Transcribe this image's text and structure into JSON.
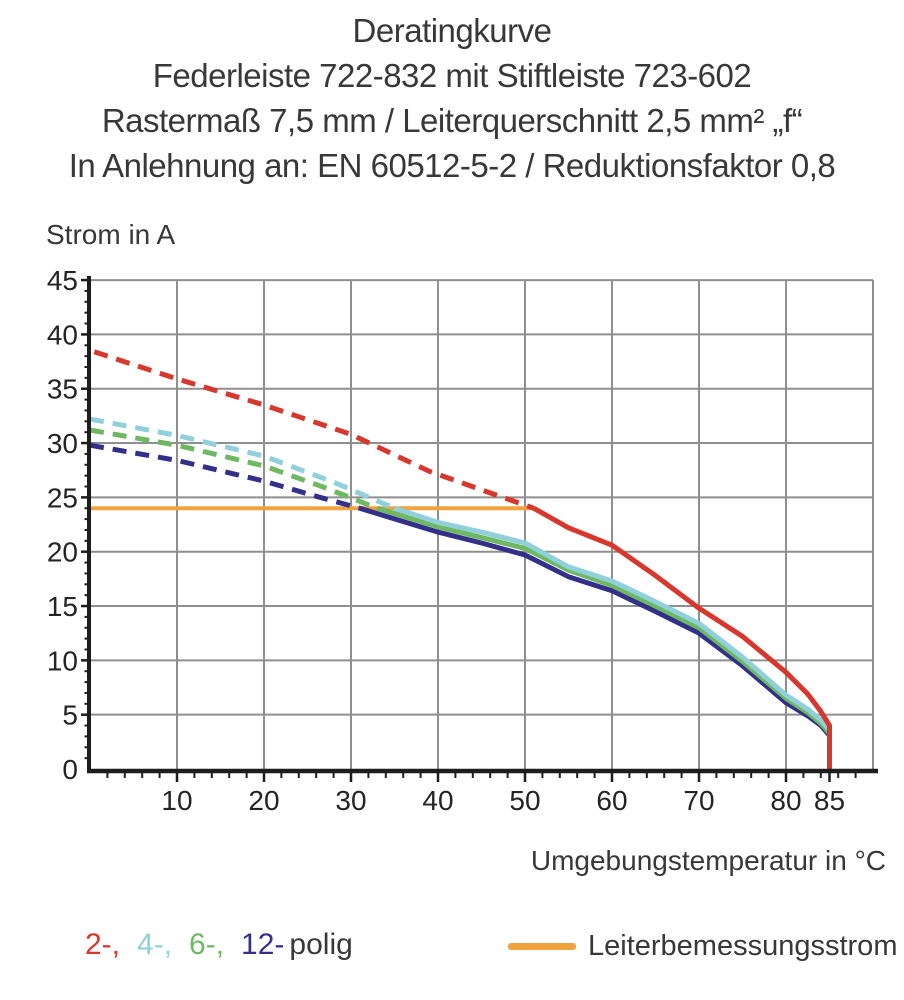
{
  "title": {
    "line1": "Deratingkurve",
    "line2": "Federleiste 722-832 mit Stiftleiste 723-602",
    "line3": "Rastermaß 7,5 mm / Leiterquerschnitt 2,5 mm² „f“",
    "line4": "In Anlehnung an: EN 60512-5-2 / Reduktionsfaktor 0,8"
  },
  "legend": {
    "pole_items": [
      {
        "text": "2-,",
        "color_key": "red"
      },
      {
        "text": "4-,",
        "color_key": "cyan"
      },
      {
        "text": "6-,",
        "color_key": "green"
      },
      {
        "text": "12-",
        "color_key": "blue"
      },
      {
        "text": "polig",
        "color_key": "text"
      }
    ],
    "rated_current_label": "Leiterbemessungsstrom"
  },
  "colors": {
    "red": "#d7372c",
    "cyan": "#8fd0da",
    "green": "#6db860",
    "blue": "#33308a",
    "orange": "#f0a23e",
    "grid": "#8f8f8f",
    "axis": "#1d1d1d",
    "text": "#383838"
  },
  "chart_data": {
    "type": "line",
    "title": "Deratingkurve",
    "xlabel": "Umgebungstemperatur in °C",
    "ylabel": "Strom in A",
    "xlim": [
      0,
      90
    ],
    "ylim": [
      0,
      45
    ],
    "grid": true,
    "legend_position": "bottom",
    "x_axis": {
      "major_ticks": [
        10,
        20,
        30,
        40,
        50,
        60,
        70,
        80,
        85
      ],
      "minor_tick_step": 2,
      "minor_tick_max": 88,
      "gridlines": [
        10,
        20,
        30,
        40,
        50,
        60,
        70,
        80,
        90
      ]
    },
    "y_axis": {
      "major_ticks": [
        0,
        5,
        10,
        15,
        20,
        25,
        30,
        35,
        40,
        45
      ],
      "minor_tick_step": 1,
      "gridlines": [
        5,
        10,
        15,
        20,
        25,
        30,
        35,
        40,
        45
      ]
    },
    "rated_current_A": 24,
    "series": [
      {
        "id": "leiterbemessungsstrom",
        "name": "Leiterbemessungsstrom",
        "color": "orange",
        "style": "solid",
        "width": 4,
        "points": [
          [
            0,
            24
          ],
          [
            51,
            24
          ]
        ]
      },
      {
        "id": "2-polig-dashed",
        "name": "2-polig (gestrichelt)",
        "color": "red",
        "style": "dashed",
        "width": 5,
        "points": [
          [
            0.5,
            38.4
          ],
          [
            10,
            35.9
          ],
          [
            20,
            33.5
          ],
          [
            30,
            30.8
          ],
          [
            39,
            27.4
          ],
          [
            45,
            25.7
          ],
          [
            51,
            24
          ]
        ]
      },
      {
        "id": "4-polig-dashed",
        "name": "4-polig (gestrichelt)",
        "color": "cyan",
        "style": "dashed",
        "width": 5,
        "points": [
          [
            0,
            32.2
          ],
          [
            10,
            30.7
          ],
          [
            20,
            28.8
          ],
          [
            28,
            26.4
          ],
          [
            35,
            24
          ]
        ]
      },
      {
        "id": "6-polig-dashed",
        "name": "6-polig (gestrichelt)",
        "color": "green",
        "style": "dashed",
        "width": 5,
        "points": [
          [
            0,
            31.2
          ],
          [
            10,
            29.8
          ],
          [
            20,
            27.9
          ],
          [
            27,
            25.9
          ],
          [
            33,
            24
          ]
        ]
      },
      {
        "id": "12-polig-dashed",
        "name": "12-polig (gestrichelt)",
        "color": "blue",
        "style": "dashed",
        "width": 5,
        "points": [
          [
            0,
            29.8
          ],
          [
            10,
            28.4
          ],
          [
            20,
            26.5
          ],
          [
            26,
            25.1
          ],
          [
            31,
            24
          ]
        ]
      },
      {
        "id": "12-polig",
        "name": "12-polig",
        "color": "blue",
        "style": "solid",
        "width": 5,
        "points": [
          [
            31,
            24
          ],
          [
            40,
            21.8
          ],
          [
            45,
            20.8
          ],
          [
            50,
            19.7
          ],
          [
            55,
            17.7
          ],
          [
            60,
            16.4
          ],
          [
            65,
            14.5
          ],
          [
            70,
            12.5
          ],
          [
            75,
            9.5
          ],
          [
            80,
            6.1
          ],
          [
            82.5,
            4.9
          ],
          [
            84,
            4.0
          ],
          [
            85,
            3.1
          ],
          [
            85,
            0
          ]
        ]
      },
      {
        "id": "6-polig",
        "name": "6-polig",
        "color": "green",
        "style": "solid",
        "width": 5,
        "points": [
          [
            33,
            24
          ],
          [
            40,
            22.3
          ],
          [
            45,
            21.3
          ],
          [
            50,
            20.3
          ],
          [
            55,
            18.3
          ],
          [
            60,
            16.9
          ],
          [
            65,
            15.0
          ],
          [
            70,
            13.0
          ],
          [
            75,
            9.9
          ],
          [
            80,
            6.5
          ],
          [
            82.5,
            5.2
          ],
          [
            84,
            4.2
          ],
          [
            85,
            3.3
          ],
          [
            85,
            0
          ]
        ]
      },
      {
        "id": "4-polig",
        "name": "4-polig",
        "color": "cyan",
        "style": "solid",
        "width": 5,
        "points": [
          [
            35,
            24
          ],
          [
            40,
            22.7
          ],
          [
            45,
            21.8
          ],
          [
            50,
            20.8
          ],
          [
            55,
            18.6
          ],
          [
            60,
            17.3
          ],
          [
            65,
            15.4
          ],
          [
            70,
            13.4
          ],
          [
            75,
            10.3
          ],
          [
            80,
            6.8
          ],
          [
            82.5,
            5.5
          ],
          [
            84,
            4.5
          ],
          [
            85,
            3.6
          ],
          [
            85,
            0
          ]
        ]
      },
      {
        "id": "2-polig",
        "name": "2-polig",
        "color": "red",
        "style": "solid",
        "width": 5,
        "points": [
          [
            51,
            24
          ],
          [
            55,
            22.2
          ],
          [
            60,
            20.6
          ],
          [
            65,
            17.8
          ],
          [
            70,
            14.8
          ],
          [
            75,
            12.2
          ],
          [
            80,
            8.9
          ],
          [
            82.5,
            6.9
          ],
          [
            84,
            5.3
          ],
          [
            85,
            4.0
          ],
          [
            85,
            0
          ]
        ]
      }
    ]
  }
}
